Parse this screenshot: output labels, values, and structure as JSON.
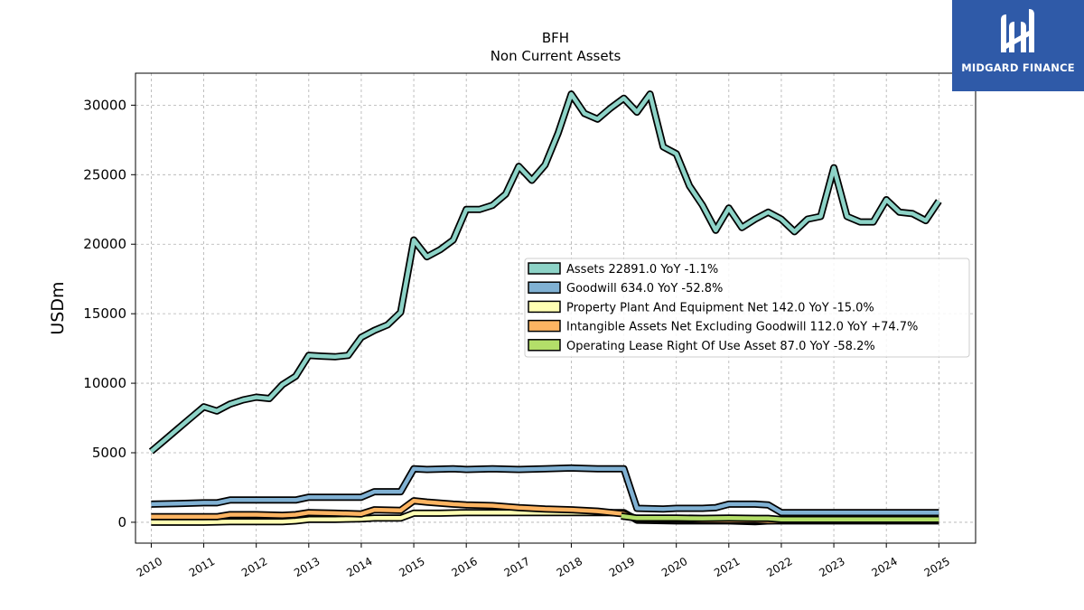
{
  "logo": {
    "text": "MIDGARD FINANCE"
  },
  "chart_data": {
    "type": "line",
    "title": "BFH",
    "subtitle": "Non Current  Assets",
    "ylabel": "USDm",
    "xlabel": "",
    "xlim": [
      2009.7,
      2025.7
    ],
    "ylim": [
      -1500,
      32300
    ],
    "yticks": [
      0,
      5000,
      10000,
      15000,
      20000,
      25000,
      30000
    ],
    "xticks": [
      "2010",
      "2011",
      "2012",
      "2013",
      "2014",
      "2015",
      "2016",
      "2017",
      "2018",
      "2019",
      "2020",
      "2021",
      "2022",
      "2023",
      "2024",
      "2025"
    ],
    "grid": true,
    "legend_position": "center-right",
    "series": [
      {
        "name": "Assets  22891.0 YoY -1.1%",
        "color": "#8dd3c7",
        "points": [
          [
            2010.0,
            5100
          ],
          [
            2010.25,
            5900
          ],
          [
            2010.5,
            6700
          ],
          [
            2010.75,
            7500
          ],
          [
            2011.0,
            8300
          ],
          [
            2011.25,
            8000
          ],
          [
            2011.5,
            8500
          ],
          [
            2011.75,
            8800
          ],
          [
            2012.0,
            9000
          ],
          [
            2012.25,
            8900
          ],
          [
            2012.5,
            9900
          ],
          [
            2012.75,
            10500
          ],
          [
            2013.0,
            12000
          ],
          [
            2013.25,
            11950
          ],
          [
            2013.5,
            11900
          ],
          [
            2013.75,
            12000
          ],
          [
            2014.0,
            13300
          ],
          [
            2014.25,
            13800
          ],
          [
            2014.5,
            14200
          ],
          [
            2014.75,
            15100
          ],
          [
            2015.0,
            20300
          ],
          [
            2015.25,
            19100
          ],
          [
            2015.5,
            19600
          ],
          [
            2015.75,
            20300
          ],
          [
            2016.0,
            22500
          ],
          [
            2016.25,
            22500
          ],
          [
            2016.5,
            22800
          ],
          [
            2016.75,
            23600
          ],
          [
            2017.0,
            25600
          ],
          [
            2017.25,
            24600
          ],
          [
            2017.5,
            25700
          ],
          [
            2017.75,
            28000
          ],
          [
            2018.0,
            30800
          ],
          [
            2018.25,
            29400
          ],
          [
            2018.5,
            29000
          ],
          [
            2018.75,
            29800
          ],
          [
            2019.0,
            30500
          ],
          [
            2019.25,
            29500
          ],
          [
            2019.5,
            30800
          ],
          [
            2019.75,
            27000
          ],
          [
            2020.0,
            26500
          ],
          [
            2020.25,
            24200
          ],
          [
            2020.5,
            22800
          ],
          [
            2020.75,
            21000
          ],
          [
            2021.0,
            22600
          ],
          [
            2021.25,
            21200
          ],
          [
            2021.5,
            21800
          ],
          [
            2021.75,
            22300
          ],
          [
            2022.0,
            21800
          ],
          [
            2022.25,
            20900
          ],
          [
            2022.5,
            21800
          ],
          [
            2022.75,
            22000
          ],
          [
            2023.0,
            25500
          ],
          [
            2023.25,
            22000
          ],
          [
            2023.5,
            21600
          ],
          [
            2023.75,
            21600
          ],
          [
            2024.0,
            23200
          ],
          [
            2024.25,
            22300
          ],
          [
            2024.5,
            22200
          ],
          [
            2024.75,
            21700
          ],
          [
            2025.0,
            23100
          ]
        ]
      },
      {
        "name": "Goodwill  634.0 YoY -52.8%",
        "color": "#80b1d3",
        "points": [
          [
            2010.0,
            1300
          ],
          [
            2010.5,
            1350
          ],
          [
            2011.0,
            1400
          ],
          [
            2011.25,
            1400
          ],
          [
            2011.5,
            1600
          ],
          [
            2012.0,
            1600
          ],
          [
            2012.5,
            1600
          ],
          [
            2012.75,
            1600
          ],
          [
            2013.0,
            1800
          ],
          [
            2013.5,
            1800
          ],
          [
            2014.0,
            1800
          ],
          [
            2014.25,
            2200
          ],
          [
            2014.75,
            2200
          ],
          [
            2015.0,
            3850
          ],
          [
            2015.25,
            3800
          ],
          [
            2015.75,
            3850
          ],
          [
            2016.0,
            3800
          ],
          [
            2016.5,
            3850
          ],
          [
            2017.0,
            3800
          ],
          [
            2017.5,
            3850
          ],
          [
            2018.0,
            3900
          ],
          [
            2018.5,
            3850
          ],
          [
            2019.0,
            3850
          ],
          [
            2019.25,
            1000
          ],
          [
            2019.75,
            950
          ],
          [
            2020.0,
            1000
          ],
          [
            2020.5,
            1000
          ],
          [
            2020.75,
            1050
          ],
          [
            2021.0,
            1300
          ],
          [
            2021.5,
            1300
          ],
          [
            2021.75,
            1250
          ],
          [
            2022.0,
            700
          ],
          [
            2022.5,
            700
          ],
          [
            2023.0,
            700
          ],
          [
            2023.5,
            700
          ],
          [
            2024.0,
            700
          ],
          [
            2024.5,
            700
          ],
          [
            2025.0,
            700
          ]
        ]
      },
      {
        "name": "Property Plant And Equipment Net  142.0 YoY -15.0%",
        "color": "#ffffb3",
        "points": [
          [
            2010.0,
            0
          ],
          [
            2010.5,
            0
          ],
          [
            2011.0,
            0
          ],
          [
            2011.5,
            50
          ],
          [
            2012.0,
            50
          ],
          [
            2012.5,
            50
          ],
          [
            2012.75,
            100
          ],
          [
            2013.0,
            200
          ],
          [
            2013.5,
            200
          ],
          [
            2014.0,
            250
          ],
          [
            2014.25,
            300
          ],
          [
            2014.75,
            300
          ],
          [
            2015.0,
            650
          ],
          [
            2015.5,
            650
          ],
          [
            2016.0,
            700
          ],
          [
            2016.5,
            700
          ],
          [
            2017.0,
            700
          ],
          [
            2017.5,
            700
          ],
          [
            2018.0,
            700
          ],
          [
            2018.5,
            700
          ],
          [
            2019.0,
            700
          ],
          [
            2019.25,
            150
          ],
          [
            2020.0,
            100
          ],
          [
            2020.5,
            100
          ],
          [
            2021.0,
            100
          ],
          [
            2021.5,
            50
          ],
          [
            2022.0,
            150
          ],
          [
            2022.5,
            150
          ],
          [
            2023.0,
            150
          ],
          [
            2023.5,
            150
          ],
          [
            2024.0,
            150
          ],
          [
            2024.5,
            150
          ],
          [
            2025.0,
            150
          ]
        ]
      },
      {
        "name": "Intangible Assets Net Excluding Goodwill  112.0 YoY +74.7%",
        "color": "#fdb462",
        "points": [
          [
            2010.0,
            400
          ],
          [
            2010.5,
            400
          ],
          [
            2011.0,
            400
          ],
          [
            2011.25,
            400
          ],
          [
            2011.5,
            550
          ],
          [
            2012.0,
            550
          ],
          [
            2012.5,
            500
          ],
          [
            2012.75,
            550
          ],
          [
            2013.0,
            700
          ],
          [
            2013.5,
            650
          ],
          [
            2014.0,
            600
          ],
          [
            2014.25,
            900
          ],
          [
            2014.75,
            850
          ],
          [
            2015.0,
            1550
          ],
          [
            2015.25,
            1450
          ],
          [
            2015.75,
            1300
          ],
          [
            2016.0,
            1250
          ],
          [
            2016.5,
            1200
          ],
          [
            2017.0,
            1050
          ],
          [
            2017.5,
            950
          ],
          [
            2018.0,
            900
          ],
          [
            2018.5,
            800
          ],
          [
            2019.0,
            600
          ],
          [
            2019.25,
            250
          ],
          [
            2020.0,
            200
          ],
          [
            2020.5,
            150
          ],
          [
            2021.0,
            150
          ],
          [
            2021.5,
            150
          ],
          [
            2021.75,
            100
          ],
          [
            2022.0,
            100
          ],
          [
            2022.5,
            100
          ],
          [
            2023.0,
            100
          ],
          [
            2023.5,
            100
          ],
          [
            2024.0,
            100
          ],
          [
            2024.5,
            100
          ],
          [
            2025.0,
            100
          ]
        ]
      },
      {
        "name": "Operating Lease Right Of Use Asset  87.0 YoY -58.2%",
        "color": "#b3de69",
        "points": [
          [
            2018.95,
            450
          ],
          [
            2019.25,
            300
          ],
          [
            2019.75,
            300
          ],
          [
            2020.0,
            300
          ],
          [
            2020.5,
            280
          ],
          [
            2021.0,
            300
          ],
          [
            2021.5,
            280
          ],
          [
            2021.75,
            280
          ],
          [
            2022.0,
            200
          ],
          [
            2022.5,
            200
          ],
          [
            2023.0,
            200
          ],
          [
            2023.5,
            200
          ],
          [
            2024.0,
            200
          ],
          [
            2024.5,
            200
          ],
          [
            2025.0,
            200
          ]
        ]
      }
    ]
  }
}
